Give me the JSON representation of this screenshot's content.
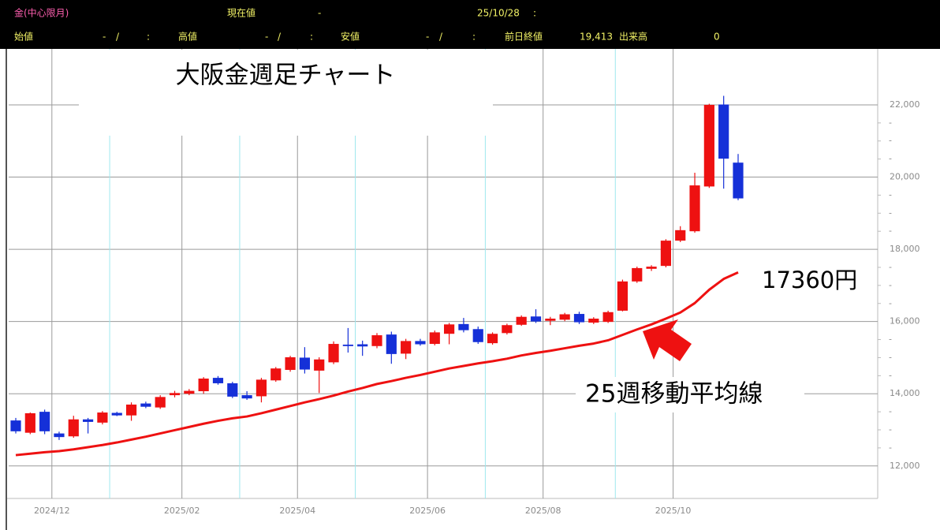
{
  "header": {
    "symbol": "金(中心限月)",
    "current_label": "現在値",
    "current": "-",
    "date": "25/10/28",
    "time": ":",
    "open_label": "始値",
    "open": "-",
    "open_sep": "/",
    "open_time": ":",
    "high_label": "高値",
    "high": "-",
    "high_sep": "/",
    "high_time": ":",
    "low_label": "安値",
    "low": "-",
    "low_sep": "/",
    "low_time": ":",
    "prev_close_label": "前日終値",
    "prev_close": "19,413",
    "volume_label": "出来高",
    "volume": "0"
  },
  "chart_data": {
    "type": "candlestick",
    "title": "大阪金週足チャート",
    "categories": [
      null,
      null,
      null,
      "2024/12",
      null,
      null,
      null,
      null,
      null,
      null,
      null,
      null,
      "2025/02",
      null,
      null,
      null,
      null,
      null,
      null,
      null,
      "2025/04",
      null,
      null,
      null,
      null,
      null,
      null,
      null,
      null,
      "2025/06",
      null,
      null,
      null,
      null,
      null,
      null,
      null,
      "2025/08",
      null,
      null,
      null,
      null,
      null,
      null,
      null,
      null,
      "2025/10",
      null,
      null,
      null,
      null
    ],
    "open": [
      13260,
      12920,
      13500,
      12900,
      12820,
      13290,
      13200,
      13470,
      13400,
      13730,
      13620,
      13960,
      14000,
      14070,
      14440,
      14290,
      13960,
      13930,
      14370,
      14660,
      15000,
      14640,
      14870,
      15360,
      15370,
      15320,
      15640,
      15110,
      15460,
      15380,
      15660,
      15930,
      15790,
      15400,
      15680,
      15910,
      16140,
      16020,
      16050,
      16210,
      15970,
      15990,
      16300,
      17110,
      17460,
      17540,
      18240,
      18500,
      19740,
      22010,
      20400
    ],
    "high": [
      13330,
      13480,
      13560,
      12950,
      13390,
      13330,
      13520,
      13500,
      13760,
      13780,
      13960,
      14080,
      14130,
      14460,
      14490,
      14330,
      14070,
      14440,
      14740,
      15050,
      15290,
      15010,
      15450,
      15820,
      15470,
      15680,
      15720,
      15520,
      15520,
      15750,
      15960,
      16100,
      15860,
      15700,
      15940,
      16170,
      16340,
      16130,
      16240,
      16270,
      16120,
      16300,
      17160,
      17520,
      17560,
      18280,
      18640,
      20120,
      22030,
      22250,
      20640
    ],
    "low": [
      12900,
      12880,
      12880,
      12720,
      12780,
      12900,
      13150,
      13380,
      13250,
      13600,
      13580,
      13900,
      13960,
      14000,
      14250,
      13880,
      13830,
      13760,
      14330,
      14610,
      14560,
      14020,
      14820,
      15140,
      15050,
      15260,
      14830,
      14960,
      15330,
      15340,
      15370,
      15700,
      15380,
      15360,
      15640,
      15880,
      15960,
      15900,
      16010,
      15930,
      15930,
      15960,
      16280,
      17070,
      17400,
      17500,
      18200,
      18460,
      19700,
      19680,
      19360
    ],
    "close": [
      12960,
      13460,
      12960,
      12800,
      13290,
      13220,
      13480,
      13400,
      13700,
      13640,
      13910,
      14020,
      14080,
      14420,
      14290,
      13920,
      13870,
      14390,
      14700,
      15010,
      14670,
      14950,
      15380,
      15320,
      15310,
      15620,
      15100,
      15460,
      15370,
      15700,
      15920,
      15760,
      15430,
      15660,
      15900,
      16130,
      16000,
      16080,
      16200,
      15980,
      16080,
      16260,
      17110,
      17480,
      17520,
      18240,
      18530,
      19770,
      22000,
      20510,
      19410
    ],
    "up_color": "#ee1111",
    "down_color": "#1530d8",
    "overlays": [
      {
        "name": "25週移動平均線",
        "color": "#ee1111",
        "values": [
          12300,
          12340,
          12380,
          12410,
          12460,
          12520,
          12580,
          12650,
          12730,
          12810,
          12900,
          12990,
          13080,
          13170,
          13250,
          13320,
          13370,
          13460,
          13560,
          13660,
          13760,
          13850,
          13950,
          14060,
          14160,
          14270,
          14350,
          14440,
          14520,
          14610,
          14700,
          14770,
          14840,
          14900,
          14970,
          15060,
          15130,
          15190,
          15260,
          15330,
          15390,
          15480,
          15630,
          15780,
          15920,
          16080,
          16250,
          16510,
          16880,
          17180,
          17360
        ]
      }
    ],
    "annotations": [
      {
        "text": "17360円"
      }
    ],
    "ylim": [
      11100,
      23550
    ],
    "yticks": [
      {
        "value": 12000,
        "label": "12,000"
      },
      {
        "value": 14000,
        "label": "14,000"
      },
      {
        "value": 16000,
        "label": "16,000"
      },
      {
        "value": 18000,
        "label": "18,000"
      },
      {
        "value": 20000,
        "label": "20,000"
      },
      {
        "value": 22000,
        "label": "22,000"
      }
    ],
    "minor_yticks": [
      {
        "value": 12500,
        "label": "-"
      },
      {
        "value": 13000,
        "label": "-"
      },
      {
        "value": 13500,
        "label": "-"
      },
      {
        "value": 14500,
        "label": "-"
      },
      {
        "value": 15000,
        "label": "-"
      },
      {
        "value": 15500,
        "label": "-"
      },
      {
        "value": 16500,
        "label": "-"
      },
      {
        "value": 17000,
        "label": "-"
      },
      {
        "value": 17500,
        "label": "-"
      },
      {
        "value": 18500,
        "label": "-"
      },
      {
        "value": 19000,
        "label": "-"
      },
      {
        "value": 19500,
        "label": "-"
      },
      {
        "value": 20500,
        "label": "-"
      },
      {
        "value": 21000,
        "label": "-"
      },
      {
        "value": 21500,
        "label": "-"
      }
    ],
    "grid": true
  }
}
